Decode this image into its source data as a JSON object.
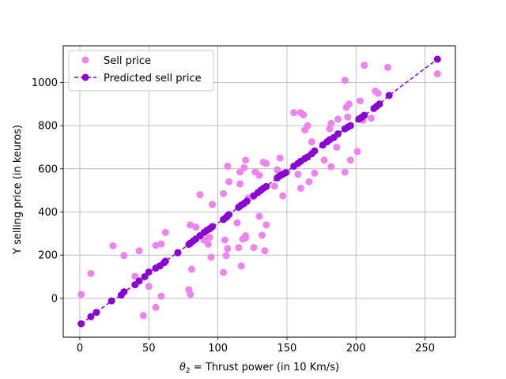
{
  "chart_data": {
    "type": "scatter",
    "xlabel_prefix": "θ",
    "xlabel_sub": "2",
    "xlabel_rest": " = Thrust power (in 10 Km/s)",
    "ylabel": "Y selling price (in keuros)",
    "xlim": [
      -12,
      272
    ],
    "ylim": [
      -180,
      1170
    ],
    "xticks": [
      0,
      50,
      100,
      150,
      200,
      250
    ],
    "yticks": [
      0,
      200,
      400,
      600,
      800,
      1000
    ],
    "grid": true,
    "legend_position": "upper-left",
    "series": [
      {
        "name": "Sell price",
        "kind": "scatter",
        "color": "#ee82ee",
        "points": [
          [
            1,
            18
          ],
          [
            8,
            115
          ],
          [
            24,
            243
          ],
          [
            32,
            198
          ],
          [
            40,
            102
          ],
          [
            43,
            220
          ],
          [
            46,
            -80
          ],
          [
            50,
            55
          ],
          [
            55,
            -42
          ],
          [
            55,
            245
          ],
          [
            59,
            10
          ],
          [
            59,
            252
          ],
          [
            62,
            305
          ],
          [
            71,
            210
          ],
          [
            79,
            40
          ],
          [
            80,
            18
          ],
          [
            80,
            340
          ],
          [
            81,
            135
          ],
          [
            84,
            330
          ],
          [
            87,
            480
          ],
          [
            90,
            270
          ],
          [
            93,
            250
          ],
          [
            94,
            282
          ],
          [
            95,
            190
          ],
          [
            96,
            435
          ],
          [
            104,
            120
          ],
          [
            104,
            485
          ],
          [
            105,
            270
          ],
          [
            106,
            198
          ],
          [
            107,
            230
          ],
          [
            107,
            612
          ],
          [
            108,
            540
          ],
          [
            114,
            350
          ],
          [
            115,
            235
          ],
          [
            116,
            530
          ],
          [
            116,
            585
          ],
          [
            117,
            150
          ],
          [
            118,
            275
          ],
          [
            119,
            605
          ],
          [
            120,
            640
          ],
          [
            120,
            290
          ],
          [
            120,
            280
          ],
          [
            122,
            465
          ],
          [
            125,
            470
          ],
          [
            126,
            235
          ],
          [
            127,
            585
          ],
          [
            130,
            380
          ],
          [
            130,
            570
          ],
          [
            132,
            292
          ],
          [
            133,
            630
          ],
          [
            134,
            220
          ],
          [
            135,
            625
          ],
          [
            135,
            340
          ],
          [
            141,
            520
          ],
          [
            143,
            595
          ],
          [
            145,
            650
          ],
          [
            147,
            475
          ],
          [
            150,
            585
          ],
          [
            155,
            860
          ],
          [
            158,
            575
          ],
          [
            160,
            860
          ],
          [
            160,
            510
          ],
          [
            162,
            850
          ],
          [
            163,
            780
          ],
          [
            165,
            800
          ],
          [
            166,
            540
          ],
          [
            168,
            725
          ],
          [
            170,
            580
          ],
          [
            177,
            640
          ],
          [
            181,
            785
          ],
          [
            182,
            810
          ],
          [
            182,
            610
          ],
          [
            186,
            700
          ],
          [
            187,
            830
          ],
          [
            192,
            1010
          ],
          [
            192,
            585
          ],
          [
            193,
            885
          ],
          [
            194,
            840
          ],
          [
            195,
            900
          ],
          [
            196,
            640
          ],
          [
            201,
            680
          ],
          [
            203,
            915
          ],
          [
            205,
            825
          ],
          [
            206,
            1080
          ],
          [
            211,
            835
          ],
          [
            214,
            960
          ],
          [
            216,
            950
          ],
          [
            223,
            1070
          ],
          [
            259,
            1040
          ]
        ]
      },
      {
        "name": "Predicted sell price",
        "kind": "line",
        "color": "#8a00d4",
        "points": [
          [
            1,
            -118
          ],
          [
            8,
            -85
          ],
          [
            12,
            -65
          ],
          [
            23,
            -12
          ],
          [
            30,
            15
          ],
          [
            32,
            30
          ],
          [
            40,
            63
          ],
          [
            43,
            80
          ],
          [
            47,
            100
          ],
          [
            50,
            122
          ],
          [
            55,
            140
          ],
          [
            58,
            150
          ],
          [
            61,
            165
          ],
          [
            62,
            172
          ],
          [
            71,
            212
          ],
          [
            79,
            250
          ],
          [
            80,
            255
          ],
          [
            82,
            265
          ],
          [
            84,
            275
          ],
          [
            87,
            290
          ],
          [
            90,
            305
          ],
          [
            92,
            315
          ],
          [
            94,
            322
          ],
          [
            96,
            332
          ],
          [
            104,
            365
          ],
          [
            106,
            375
          ],
          [
            107,
            382
          ],
          [
            108,
            388
          ],
          [
            115,
            422
          ],
          [
            117,
            432
          ],
          [
            119,
            440
          ],
          [
            121,
            450
          ],
          [
            126,
            475
          ],
          [
            129,
            490
          ],
          [
            131,
            500
          ],
          [
            133,
            510
          ],
          [
            135,
            518
          ],
          [
            143,
            558
          ],
          [
            145,
            568
          ],
          [
            147,
            575
          ],
          [
            149,
            582
          ],
          [
            155,
            612
          ],
          [
            158,
            625
          ],
          [
            160,
            635
          ],
          [
            163,
            648
          ],
          [
            165,
            655
          ],
          [
            168,
            670
          ],
          [
            170,
            683
          ],
          [
            176,
            710
          ],
          [
            179,
            725
          ],
          [
            181,
            735
          ],
          [
            184,
            745
          ],
          [
            187,
            762
          ],
          [
            192,
            785
          ],
          [
            194,
            793
          ],
          [
            196,
            800
          ],
          [
            202,
            830
          ],
          [
            204,
            838
          ],
          [
            206,
            848
          ],
          [
            213,
            880
          ],
          [
            215,
            890
          ],
          [
            217,
            900
          ],
          [
            224,
            940
          ],
          [
            259,
            1108
          ]
        ]
      }
    ]
  }
}
